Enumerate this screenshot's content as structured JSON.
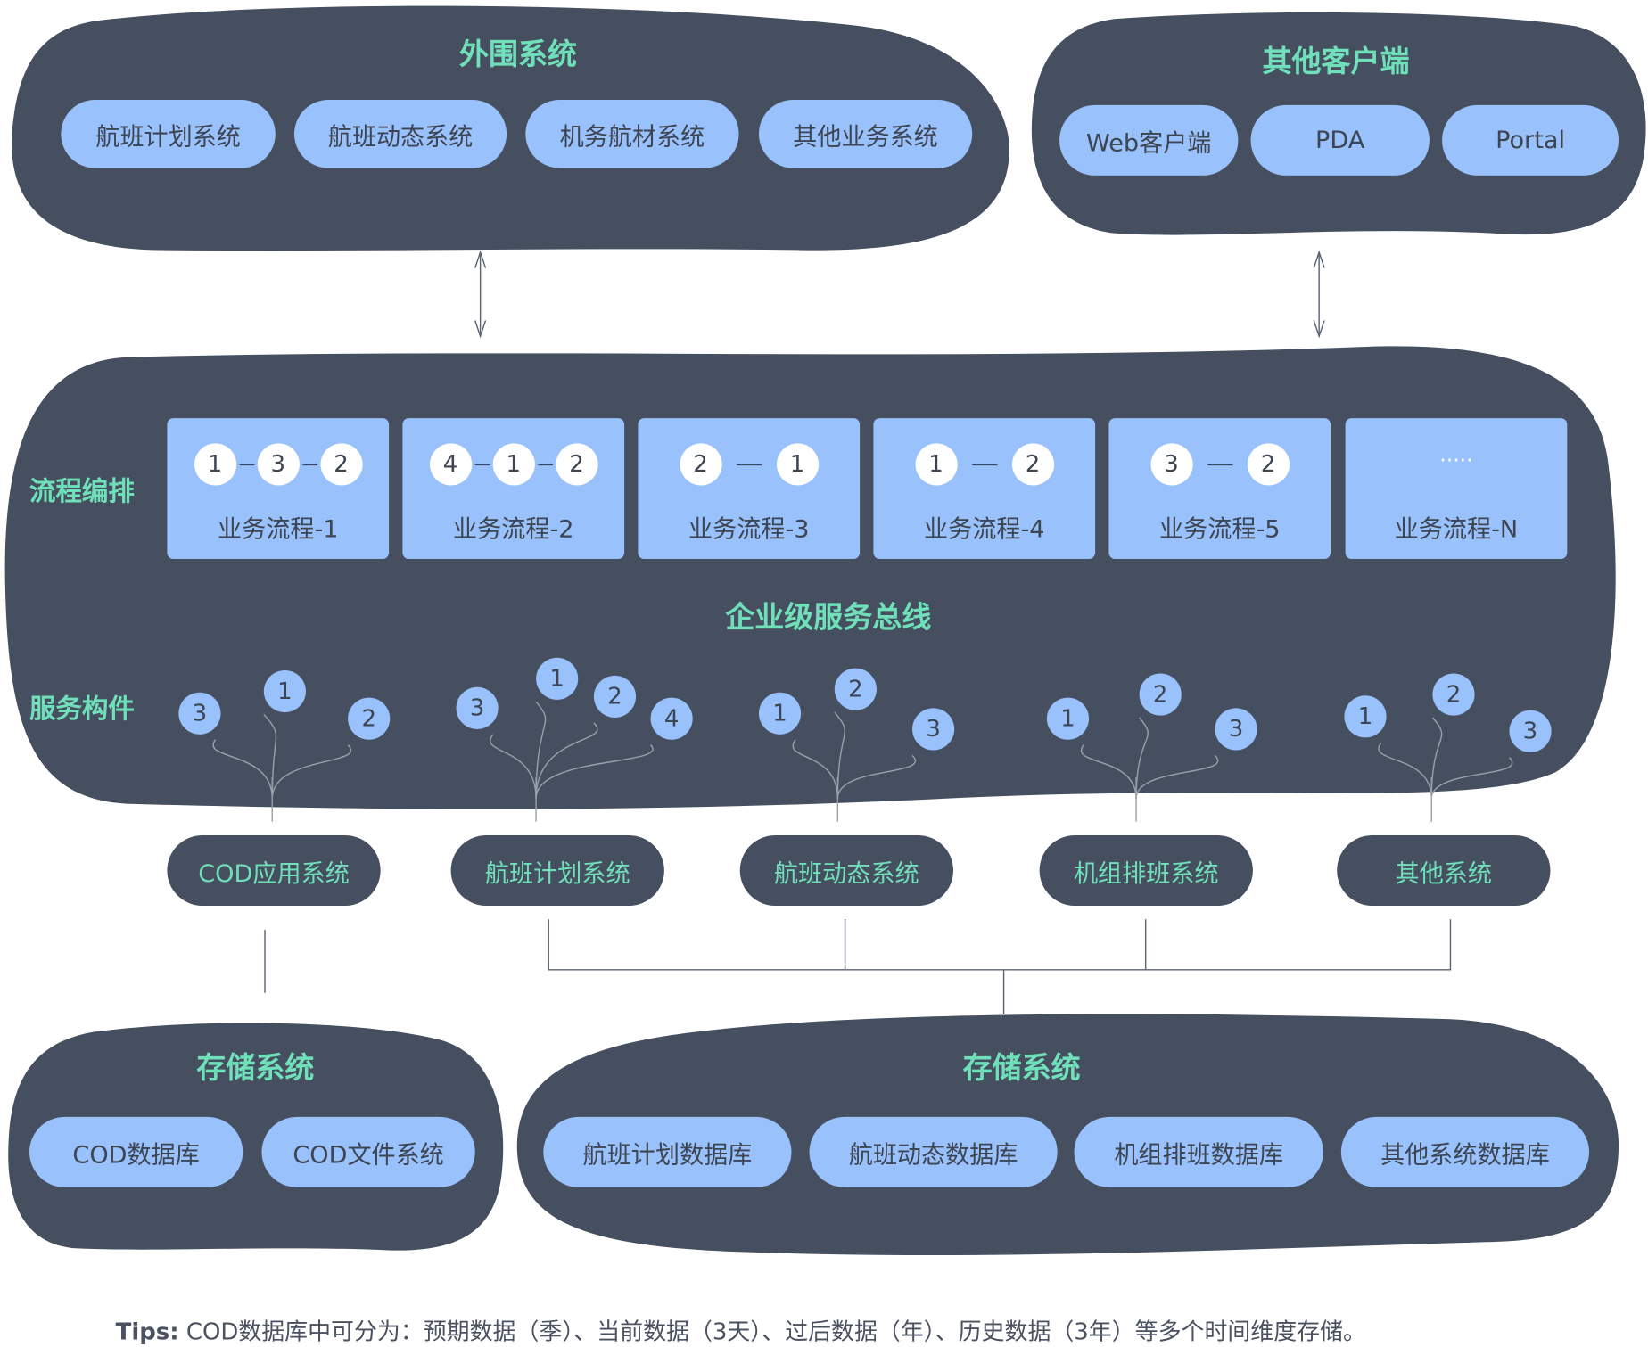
{
  "colors": {
    "dark": "#464f5f",
    "light_blue": "#99c1fb",
    "teal": "#6fe0b9",
    "text": "#3d4452"
  },
  "peripheral": {
    "title": "外围系统",
    "items": [
      "航班计划系统",
      "航班动态系统",
      "机务航材系统",
      "其他业务系统"
    ]
  },
  "clients": {
    "title": "其他客户端",
    "items": [
      "Web客户端",
      "PDA",
      "Portal"
    ]
  },
  "esb": {
    "title": "企业级服务总线",
    "orchestration_label": "流程编排",
    "components_label": "服务构件",
    "flows": [
      {
        "label": "业务流程-1",
        "nodes": [
          "1",
          "3",
          "2"
        ]
      },
      {
        "label": "业务流程-2",
        "nodes": [
          "4",
          "1",
          "2"
        ]
      },
      {
        "label": "业务流程-3",
        "nodes": [
          "2",
          "1"
        ]
      },
      {
        "label": "业务流程-4",
        "nodes": [
          "1",
          "2"
        ]
      },
      {
        "label": "业务流程-5",
        "nodes": [
          "3",
          "2"
        ]
      },
      {
        "label": "业务流程-N",
        "nodes": [
          "....."
        ]
      }
    ],
    "component_groups": [
      [
        "3",
        "1",
        "2"
      ],
      [
        "3",
        "1",
        "2",
        "4"
      ],
      [
        "1",
        "2",
        "3"
      ],
      [
        "1",
        "2",
        "3"
      ],
      [
        "1",
        "2",
        "3"
      ]
    ]
  },
  "applications": [
    "COD应用系统",
    "航班计划系统",
    "航班动态系统",
    "机组排班系统",
    "其他系统"
  ],
  "storage_left": {
    "title": "存储系统",
    "items": [
      "COD数据库",
      "COD文件系统"
    ]
  },
  "storage_right": {
    "title": "存储系统",
    "items": [
      "航班计划数据库",
      "航班动态数据库",
      "机组排班数据库",
      "其他系统数据库"
    ]
  },
  "tips": {
    "prefix": "Tips:",
    "text": " COD数据库中可分为：预期数据（季）、当前数据（3天）、过后数据（年）、历史数据（3年）等多个时间维度存储。"
  }
}
